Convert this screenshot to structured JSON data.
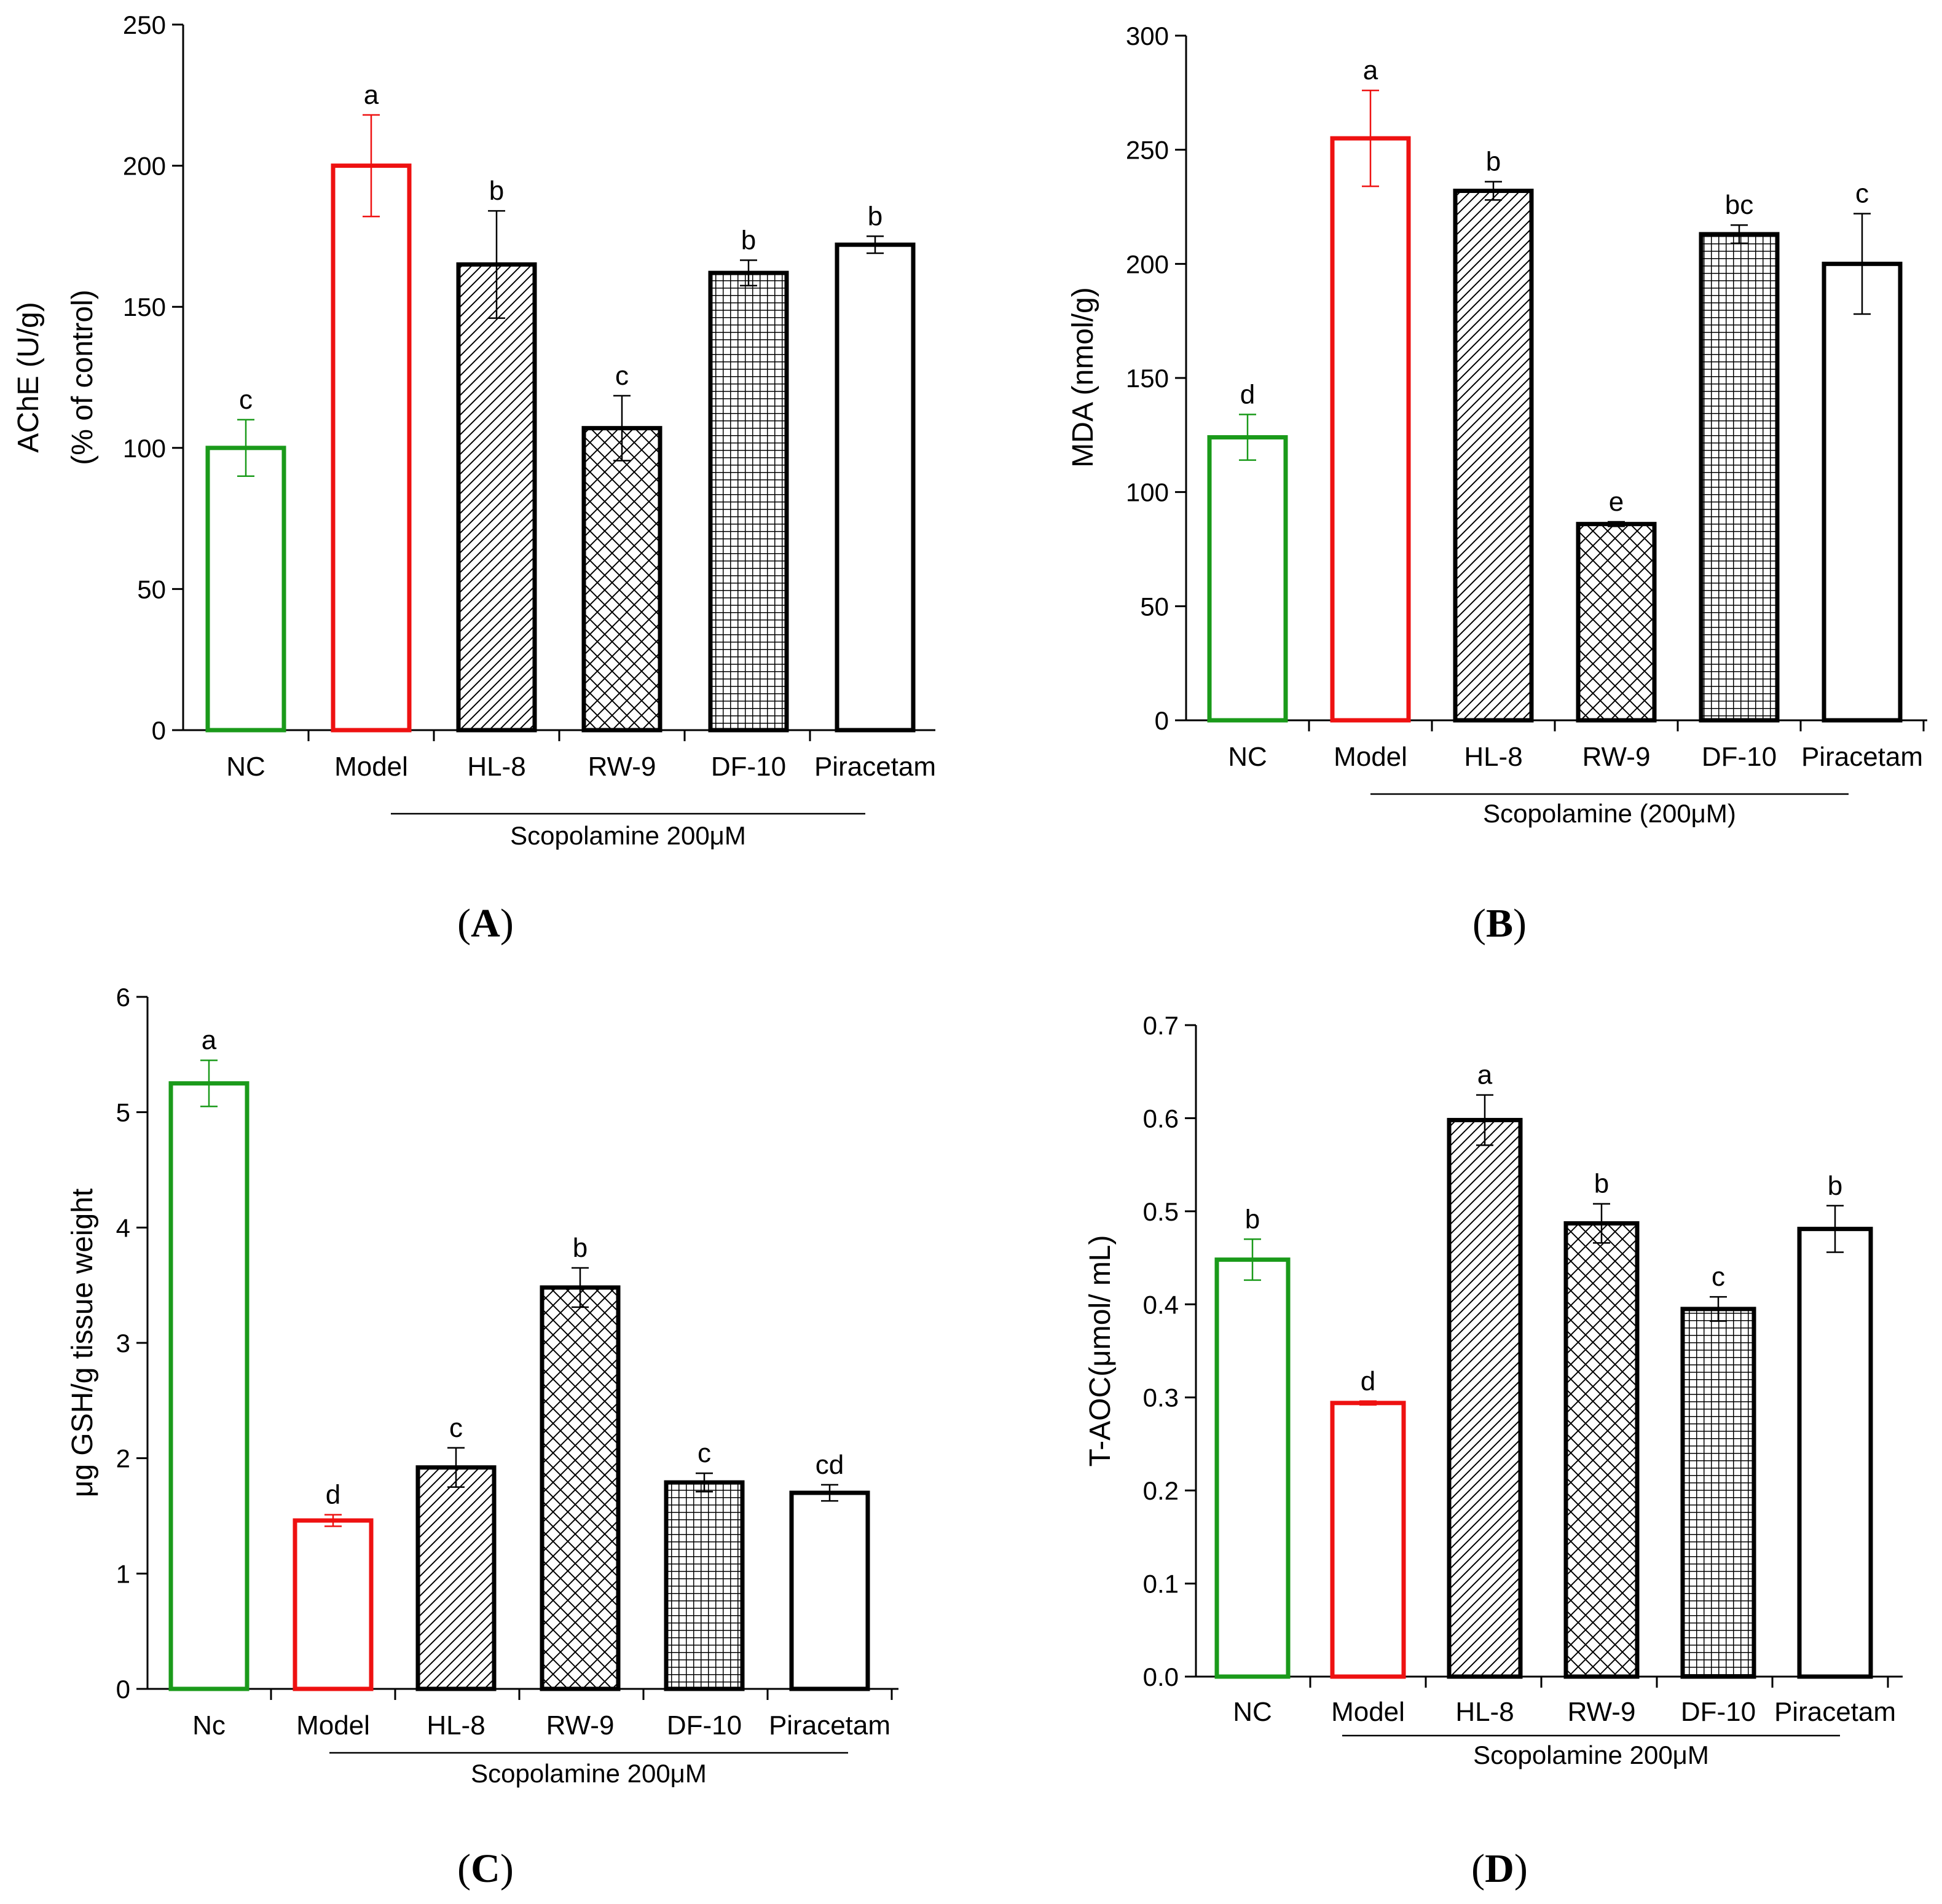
{
  "colors": {
    "nc": "#1a9a1a",
    "model": "#ee1111",
    "treatment": "#000000",
    "axis": "#000000"
  },
  "fill_patterns": [
    "none",
    "none",
    "diagonal-hatch",
    "crosshatch",
    "grid",
    "none"
  ],
  "chart_data": [
    {
      "type": "bar",
      "panel_label": "A",
      "ylabel": "AChE (U/g)",
      "ylabel2": "(% of control)",
      "xlabel": "",
      "categories": [
        "NC",
        "Model",
        "HL-8",
        "RW-9",
        "DF-10",
        "Piracetam"
      ],
      "values": [
        100,
        200,
        165,
        107,
        162,
        172
      ],
      "errors": [
        10,
        18,
        19,
        11.5,
        4.5,
        3
      ],
      "letters": [
        "c",
        "a",
        "b",
        "c",
        "b",
        "b"
      ],
      "ylim": [
        0,
        250
      ],
      "yticks": [
        0,
        50,
        100,
        150,
        200,
        250
      ],
      "ytick_labels": [
        "0",
        "50",
        "100",
        "150",
        "200",
        "250"
      ],
      "bracket_label": "Scopolamine 200μM"
    },
    {
      "type": "bar",
      "panel_label": "B",
      "ylabel": "MDA (nmol/g)",
      "xlabel": "",
      "categories": [
        "NC",
        "Model",
        "HL-8",
        "RW-9",
        "DF-10",
        "Piracetam"
      ],
      "values": [
        124,
        255,
        232,
        86,
        213,
        200
      ],
      "errors": [
        10,
        21,
        4,
        1,
        4,
        22
      ],
      "letters": [
        "d",
        "a",
        "b",
        "e",
        "bc",
        "c"
      ],
      "ylim": [
        0,
        300
      ],
      "yticks": [
        0,
        50,
        100,
        150,
        200,
        250,
        300
      ],
      "ytick_labels": [
        "0",
        "50",
        "100",
        "150",
        "200",
        "250",
        "300"
      ],
      "bracket_label": "Scopolamine (200μM)"
    },
    {
      "type": "bar",
      "panel_label": "C",
      "ylabel": "μg GSH/g tissue weight",
      "xlabel": "",
      "categories": [
        "Nc",
        "Model",
        "HL-8",
        "RW-9",
        "DF-10",
        "Piracetam"
      ],
      "values": [
        5.25,
        1.46,
        1.92,
        3.48,
        1.79,
        1.7
      ],
      "errors": [
        0.2,
        0.05,
        0.17,
        0.17,
        0.08,
        0.07
      ],
      "letters": [
        "a",
        "d",
        "c",
        "b",
        "c",
        "cd"
      ],
      "ylim": [
        0,
        6
      ],
      "yticks": [
        0,
        1,
        2,
        3,
        4,
        5,
        6
      ],
      "ytick_labels": [
        "0",
        "1",
        "2",
        "3",
        "4",
        "5",
        "6"
      ],
      "bracket_label": "Scopolamine 200μM"
    },
    {
      "type": "bar",
      "panel_label": "D",
      "ylabel": "T-AOC(μmol/ mL)",
      "xlabel": "",
      "categories": [
        "NC",
        "Model",
        "HL-8",
        "RW-9",
        "DF-10",
        "Piracetam"
      ],
      "values": [
        0.448,
        0.294,
        0.598,
        0.487,
        0.395,
        0.481
      ],
      "errors": [
        0.022,
        0.002,
        0.027,
        0.021,
        0.013,
        0.025
      ],
      "letters": [
        "b",
        "d",
        "a",
        "b",
        "c",
        "b"
      ],
      "ylim": [
        0,
        0.7
      ],
      "yticks": [
        0,
        0.1,
        0.2,
        0.3,
        0.4,
        0.5,
        0.6,
        0.7
      ],
      "ytick_labels": [
        "0.0",
        "0.1",
        "0.2",
        "0.3",
        "0.4",
        "0.5",
        "0.6",
        "0.7"
      ],
      "bracket_label": "Scopolamine 200μM"
    }
  ]
}
